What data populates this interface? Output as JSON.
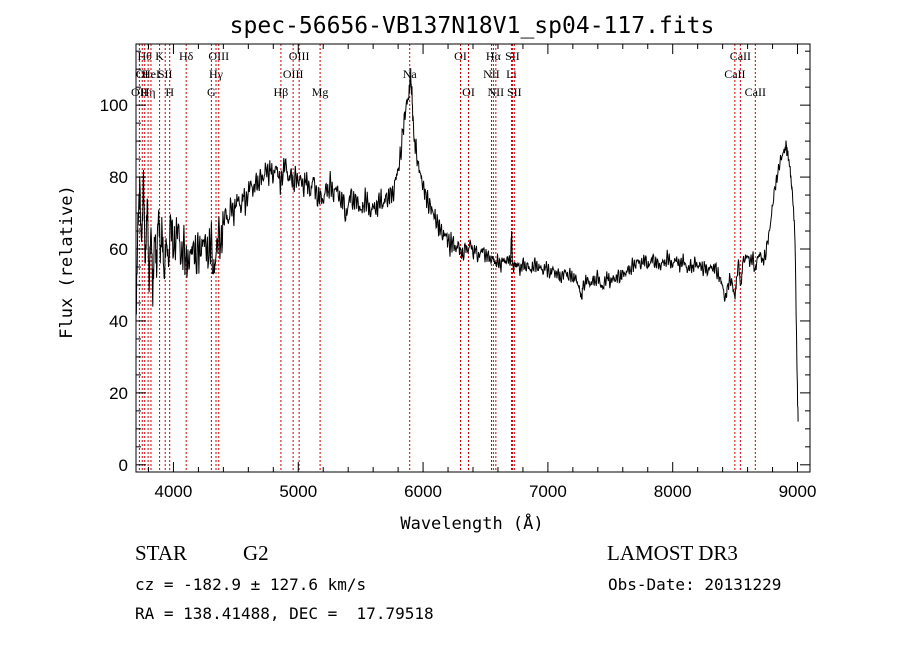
{
  "chart_data": {
    "type": "line",
    "title": "spec-56656-VB137N18V1_sp04-117.fits",
    "xlabel": "Wavelength (Å)",
    "ylabel": "Flux (relative)",
    "xlim": [
      3700,
      9100
    ],
    "ylim": [
      -2,
      117
    ],
    "x_ticks": [
      4000,
      5000,
      6000,
      7000,
      8000,
      9000
    ],
    "y_ticks": [
      0,
      20,
      40,
      60,
      80,
      100
    ],
    "grid": false,
    "series": [
      {
        "values": [
          [
            3700,
            42
          ],
          [
            3715,
            70
          ],
          [
            3730,
            80
          ],
          [
            3745,
            62
          ],
          [
            3760,
            82
          ],
          [
            3775,
            56
          ],
          [
            3790,
            74
          ],
          [
            3805,
            48
          ],
          [
            3820,
            66
          ],
          [
            3835,
            44
          ],
          [
            3850,
            62
          ],
          [
            3865,
            52
          ],
          [
            3880,
            70
          ],
          [
            3895,
            56
          ],
          [
            3910,
            65
          ],
          [
            3925,
            52
          ],
          [
            3940,
            63
          ],
          [
            3960,
            55
          ],
          [
            3980,
            68
          ],
          [
            4000,
            58
          ],
          [
            4020,
            62
          ],
          [
            4040,
            67
          ],
          [
            4060,
            56
          ],
          [
            4080,
            62
          ],
          [
            4100,
            58
          ],
          [
            4120,
            57
          ],
          [
            4140,
            60
          ],
          [
            4160,
            62
          ],
          [
            4180,
            57
          ],
          [
            4200,
            60
          ],
          [
            4220,
            58
          ],
          [
            4240,
            62
          ],
          [
            4260,
            60
          ],
          [
            4280,
            56
          ],
          [
            4300,
            63
          ],
          [
            4320,
            53
          ],
          [
            4340,
            58
          ],
          [
            4360,
            66
          ],
          [
            4380,
            62
          ],
          [
            4400,
            68
          ],
          [
            4420,
            71
          ],
          [
            4440,
            67
          ],
          [
            4460,
            73
          ],
          [
            4480,
            69
          ],
          [
            4500,
            72
          ],
          [
            4520,
            74
          ],
          [
            4540,
            70
          ],
          [
            4560,
            75
          ],
          [
            4580,
            72
          ],
          [
            4600,
            76
          ],
          [
            4620,
            79
          ],
          [
            4640,
            76
          ],
          [
            4660,
            80
          ],
          [
            4680,
            78
          ],
          [
            4700,
            81
          ],
          [
            4720,
            79
          ],
          [
            4740,
            83
          ],
          [
            4760,
            80
          ],
          [
            4780,
            82
          ],
          [
            4800,
            79
          ],
          [
            4820,
            83
          ],
          [
            4840,
            80
          ],
          [
            4860,
            78
          ],
          [
            4880,
            82
          ],
          [
            4900,
            85
          ],
          [
            4920,
            79
          ],
          [
            4940,
            82
          ],
          [
            4960,
            78
          ],
          [
            4980,
            81
          ],
          [
            5000,
            78
          ],
          [
            5020,
            80
          ],
          [
            5040,
            76
          ],
          [
            5060,
            79
          ],
          [
            5080,
            77
          ],
          [
            5100,
            75
          ],
          [
            5120,
            80
          ],
          [
            5140,
            76
          ],
          [
            5160,
            74
          ],
          [
            5180,
            76
          ],
          [
            5200,
            73
          ],
          [
            5220,
            78
          ],
          [
            5240,
            76
          ],
          [
            5260,
            79
          ],
          [
            5280,
            74
          ],
          [
            5300,
            77
          ],
          [
            5320,
            75
          ],
          [
            5340,
            72
          ],
          [
            5360,
            74
          ],
          [
            5380,
            68
          ],
          [
            5400,
            72
          ],
          [
            5420,
            76
          ],
          [
            5440,
            73
          ],
          [
            5460,
            75
          ],
          [
            5480,
            73
          ],
          [
            5500,
            71
          ],
          [
            5520,
            72
          ],
          [
            5540,
            74
          ],
          [
            5560,
            72
          ],
          [
            5580,
            69
          ],
          [
            5600,
            72
          ],
          [
            5620,
            70
          ],
          [
            5640,
            72
          ],
          [
            5660,
            74
          ],
          [
            5680,
            72
          ],
          [
            5700,
            75
          ],
          [
            5720,
            74
          ],
          [
            5740,
            77
          ],
          [
            5760,
            75
          ],
          [
            5780,
            80
          ],
          [
            5800,
            82
          ],
          [
            5820,
            86
          ],
          [
            5840,
            93
          ],
          [
            5860,
            98
          ],
          [
            5880,
            102
          ],
          [
            5895,
            108
          ],
          [
            5905,
            106
          ],
          [
            5915,
            100
          ],
          [
            5925,
            92
          ],
          [
            5940,
            88
          ],
          [
            5960,
            84
          ],
          [
            5980,
            81
          ],
          [
            6000,
            78
          ],
          [
            6020,
            76
          ],
          [
            6040,
            73
          ],
          [
            6060,
            72
          ],
          [
            6080,
            70
          ],
          [
            6100,
            68
          ],
          [
            6120,
            66
          ],
          [
            6140,
            65
          ],
          [
            6160,
            63
          ],
          [
            6180,
            64
          ],
          [
            6200,
            62
          ],
          [
            6220,
            61
          ],
          [
            6240,
            63
          ],
          [
            6260,
            60
          ],
          [
            6280,
            62
          ],
          [
            6300,
            60
          ],
          [
            6320,
            58
          ],
          [
            6340,
            61
          ],
          [
            6360,
            59
          ],
          [
            6380,
            62
          ],
          [
            6400,
            58
          ],
          [
            6420,
            60
          ],
          [
            6440,
            57
          ],
          [
            6460,
            59
          ],
          [
            6480,
            60
          ],
          [
            6500,
            58
          ],
          [
            6520,
            59
          ],
          [
            6540,
            57
          ],
          [
            6560,
            58
          ],
          [
            6580,
            56
          ],
          [
            6600,
            57
          ],
          [
            6620,
            55
          ],
          [
            6640,
            57
          ],
          [
            6660,
            56
          ],
          [
            6680,
            57
          ],
          [
            6700,
            56
          ],
          [
            6710,
            65
          ],
          [
            6715,
            56
          ],
          [
            6740,
            55
          ],
          [
            6760,
            56
          ],
          [
            6780,
            54
          ],
          [
            6800,
            57
          ],
          [
            6820,
            55
          ],
          [
            6840,
            56
          ],
          [
            6860,
            54
          ],
          [
            6880,
            55
          ],
          [
            6900,
            56
          ],
          [
            6920,
            54
          ],
          [
            6940,
            55
          ],
          [
            6960,
            53
          ],
          [
            6980,
            55
          ],
          [
            7000,
            54
          ],
          [
            7020,
            53
          ],
          [
            7040,
            55
          ],
          [
            7060,
            53
          ],
          [
            7080,
            54
          ],
          [
            7100,
            52
          ],
          [
            7120,
            53
          ],
          [
            7140,
            54
          ],
          [
            7160,
            52
          ],
          [
            7180,
            53
          ],
          [
            7200,
            51
          ],
          [
            7220,
            52
          ],
          [
            7240,
            50
          ],
          [
            7260,
            48
          ],
          [
            7270,
            46
          ],
          [
            7280,
            49
          ],
          [
            7300,
            51
          ],
          [
            7320,
            52
          ],
          [
            7340,
            50
          ],
          [
            7360,
            52
          ],
          [
            7380,
            51
          ],
          [
            7400,
            53
          ],
          [
            7420,
            50
          ],
          [
            7440,
            49
          ],
          [
            7460,
            51
          ],
          [
            7480,
            52
          ],
          [
            7500,
            50
          ],
          [
            7520,
            52
          ],
          [
            7540,
            51
          ],
          [
            7560,
            53
          ],
          [
            7580,
            52
          ],
          [
            7600,
            54
          ],
          [
            7620,
            53
          ],
          [
            7640,
            55
          ],
          [
            7660,
            54
          ],
          [
            7680,
            56
          ],
          [
            7700,
            55
          ],
          [
            7720,
            57
          ],
          [
            7740,
            55
          ],
          [
            7760,
            56
          ],
          [
            7780,
            57
          ],
          [
            7800,
            55
          ],
          [
            7820,
            56
          ],
          [
            7840,
            58
          ],
          [
            7860,
            56
          ],
          [
            7880,
            57
          ],
          [
            7900,
            55
          ],
          [
            7920,
            57
          ],
          [
            7940,
            56
          ],
          [
            7960,
            58
          ],
          [
            7980,
            56
          ],
          [
            8000,
            55
          ],
          [
            8020,
            57
          ],
          [
            8040,
            56
          ],
          [
            8060,
            55
          ],
          [
            8080,
            57
          ],
          [
            8100,
            56
          ],
          [
            8120,
            54
          ],
          [
            8140,
            56
          ],
          [
            8160,
            55
          ],
          [
            8180,
            57
          ],
          [
            8200,
            55
          ],
          [
            8220,
            56
          ],
          [
            8240,
            54
          ],
          [
            8260,
            55
          ],
          [
            8280,
            53
          ],
          [
            8300,
            55
          ],
          [
            8320,
            54
          ],
          [
            8340,
            55
          ],
          [
            8360,
            53
          ],
          [
            8380,
            52
          ],
          [
            8400,
            50
          ],
          [
            8420,
            46
          ],
          [
            8440,
            50
          ],
          [
            8460,
            52
          ],
          [
            8480,
            50
          ],
          [
            8500,
            46
          ],
          [
            8510,
            52
          ],
          [
            8530,
            56
          ],
          [
            8545,
            50
          ],
          [
            8560,
            56
          ],
          [
            8580,
            57
          ],
          [
            8600,
            58
          ],
          [
            8620,
            56
          ],
          [
            8640,
            58
          ],
          [
            8660,
            54
          ],
          [
            8680,
            58
          ],
          [
            8700,
            59
          ],
          [
            8720,
            57
          ],
          [
            8740,
            58
          ],
          [
            8760,
            62
          ],
          [
            8780,
            66
          ],
          [
            8800,
            72
          ],
          [
            8820,
            77
          ],
          [
            8840,
            80
          ],
          [
            8860,
            84
          ],
          [
            8880,
            86
          ],
          [
            8900,
            88
          ],
          [
            8910,
            89
          ],
          [
            8920,
            86
          ],
          [
            8935,
            83
          ],
          [
            8950,
            78
          ],
          [
            8965,
            72
          ],
          [
            8980,
            62
          ],
          [
            8995,
            28
          ],
          [
            9005,
            12
          ]
        ]
      }
    ],
    "line_markers": [
      {
        "wavelength": 3727,
        "label": "OII",
        "row": 2
      },
      {
        "wavelength": 3750,
        "label": "OI",
        "row": 1
      },
      {
        "wavelength": 3770,
        "label": "Hθ",
        "row": 0
      },
      {
        "wavelength": 3797,
        "label": "Hη",
        "row": 2
      },
      {
        "wavelength": 3820,
        "label": "HeI",
        "row": 1
      },
      {
        "wavelength": 3889,
        "label": "K",
        "row": 0
      },
      {
        "wavelength": 3934,
        "label": "SII",
        "row": 1
      },
      {
        "wavelength": 3970,
        "label": "H",
        "row": 2
      },
      {
        "wavelength": 4102,
        "label": "Hδ",
        "row": 0
      },
      {
        "wavelength": 4304,
        "label": "G",
        "row": 2
      },
      {
        "wavelength": 4341,
        "label": "Hγ",
        "row": 1
      },
      {
        "wavelength": 4363,
        "label": "OIII",
        "row": 0
      },
      {
        "wavelength": 4861,
        "label": "Hβ",
        "row": 2
      },
      {
        "wavelength": 4959,
        "label": "OIII",
        "row": 1
      },
      {
        "wavelength": 5007,
        "label": "OIII",
        "row": 0
      },
      {
        "wavelength": 5175,
        "label": "Mg",
        "row": 2
      },
      {
        "wavelength": 5893,
        "label": "Na",
        "row": 1
      },
      {
        "wavelength": 6300,
        "label": "OI",
        "row": 0
      },
      {
        "wavelength": 6364,
        "label": "OI",
        "row": 2
      },
      {
        "wavelength": 6548,
        "label": "NII",
        "row": 1
      },
      {
        "wavelength": 6563,
        "label": "Hα",
        "row": 0
      },
      {
        "wavelength": 6583,
        "label": "NII",
        "row": 2
      },
      {
        "wavelength": 6708,
        "label": "Li",
        "row": 1
      },
      {
        "wavelength": 6716,
        "label": "SII",
        "row": 0
      },
      {
        "wavelength": 6731,
        "label": "SII",
        "row": 2
      },
      {
        "wavelength": 8498,
        "label": "CaII",
        "row": 1
      },
      {
        "wavelength": 8542,
        "label": "CaII",
        "row": 0
      },
      {
        "wavelength": 8662,
        "label": "CaII",
        "row": 2
      }
    ],
    "colors": {
      "spectrum": "#000000",
      "markers": "#cc0000",
      "axes": "#000000"
    }
  },
  "info": {
    "object_class": "STAR",
    "subclass": "G2",
    "survey": "LAMOST DR3",
    "redshift": "cz = -182.9 ± 127.6 km/s",
    "obs_date": "Obs-Date: 20131229",
    "coordinates": "RA = 138.41488, DEC =  17.79518"
  }
}
